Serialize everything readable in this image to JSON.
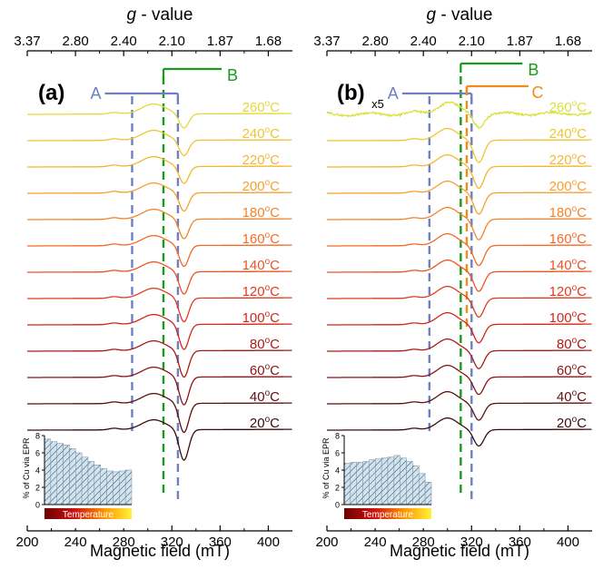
{
  "top_axis_title_g": "g",
  "top_axis_title_rest": " - value",
  "x_axis_label": "Magnetic field (mT)",
  "colors": {
    "A": "#6f7fc2",
    "B": "#1a9a1a",
    "C": "#f08c1a",
    "axis": "#000000",
    "bar_fill": "#cfe4ef",
    "bar_edge": "#2b2b4b"
  },
  "chart_data": [
    {
      "panel": "(a)",
      "type": "line",
      "xlim": [
        200,
        420
      ],
      "xticks": [
        "200",
        "240",
        "280",
        "320",
        "360",
        "400"
      ],
      "g_ticks": [
        "3.37",
        "2.80",
        "2.40",
        "2.10",
        "1.87",
        "1.68"
      ],
      "g_tick_fields": [
        200,
        240,
        280,
        320,
        360,
        400
      ],
      "markers": {
        "A": {
          "label": "A",
          "lines": [
            287,
            325
          ]
        },
        "B": {
          "label": "B",
          "lines": [
            313
          ]
        }
      },
      "series": [
        {
          "name": "20°C",
          "label_base": "20",
          "label_sup": "o",
          "label_unit": "C",
          "color": "#3a0d0d"
        },
        {
          "name": "40°C",
          "label_base": "40",
          "label_sup": "o",
          "label_unit": "C",
          "color": "#5c1010"
        },
        {
          "name": "60°C",
          "label_base": "60",
          "label_sup": "o",
          "label_unit": "C",
          "color": "#8a1414"
        },
        {
          "name": "80°C",
          "label_base": "80",
          "label_sup": "o",
          "label_unit": "C",
          "color": "#a81b16"
        },
        {
          "name": "100°C",
          "label_base": "100",
          "label_sup": "o",
          "label_unit": "C",
          "color": "#d3261a"
        },
        {
          "name": "120°C",
          "label_base": "120",
          "label_sup": "o",
          "label_unit": "C",
          "color": "#e33b1d"
        },
        {
          "name": "140°C",
          "label_base": "140",
          "label_sup": "o",
          "label_unit": "C",
          "color": "#ee5322"
        },
        {
          "name": "160°C",
          "label_base": "160",
          "label_sup": "o",
          "label_unit": "C",
          "color": "#f26a26"
        },
        {
          "name": "180°C",
          "label_base": "180",
          "label_sup": "o",
          "label_unit": "C",
          "color": "#f4842a"
        },
        {
          "name": "200°C",
          "label_base": "200",
          "label_sup": "o",
          "label_unit": "C",
          "color": "#f6a02e"
        },
        {
          "name": "220°C",
          "label_base": "220",
          "label_sup": "o",
          "label_unit": "C",
          "color": "#f3b72f"
        },
        {
          "name": "240°C",
          "label_base": "240",
          "label_sup": "o",
          "label_unit": "C",
          "color": "#eec532"
        },
        {
          "name": "260°C",
          "label_base": "260",
          "label_sup": "o",
          "label_unit": "C",
          "color": "#e4d83a"
        }
      ],
      "line_params": {
        "pos_center": 305,
        "pos_width": 14,
        "neg_center": 330,
        "neg_width": 5.5,
        "neg_amp_base": 34,
        "neg_amp_step": 1.5,
        "pos_amp": 11,
        "noise": 0
      },
      "inset": {
        "type": "bar",
        "ylabel": "% of Cu via EPR",
        "yticks": [
          "0",
          "2",
          "4",
          "6",
          "8"
        ],
        "ylim": [
          0,
          8
        ],
        "values": [
          7.6,
          7.3,
          7.1,
          6.9,
          6.5,
          6.0,
          5.5,
          5.0,
          4.6,
          4.2,
          3.9,
          3.8,
          3.9,
          4.0
        ],
        "bar_label": "Temperature"
      }
    },
    {
      "panel": "(b)",
      "type": "line",
      "xlim": [
        200,
        420
      ],
      "xticks": [
        "200",
        "240",
        "280",
        "320",
        "360",
        "400"
      ],
      "g_ticks": [
        "3.37",
        "2.80",
        "2.40",
        "2.10",
        "1.87",
        "1.68"
      ],
      "g_tick_fields": [
        200,
        240,
        280,
        320,
        360,
        400
      ],
      "scale_note": "x5",
      "markers": {
        "A": {
          "label": "A",
          "lines": [
            285,
            320
          ]
        },
        "B": {
          "label": "B",
          "lines": [
            311
          ]
        },
        "C": {
          "label": "C",
          "lines": [
            316
          ]
        }
      },
      "series": [
        {
          "name": "20°C",
          "label_base": "20",
          "label_sup": "o",
          "label_unit": "C",
          "color": "#3a0d0d"
        },
        {
          "name": "40°C",
          "label_base": "40",
          "label_sup": "o",
          "label_unit": "C",
          "color": "#5c1010"
        },
        {
          "name": "60°C",
          "label_base": "60",
          "label_sup": "o",
          "label_unit": "C",
          "color": "#8a1414"
        },
        {
          "name": "80°C",
          "label_base": "80",
          "label_sup": "o",
          "label_unit": "C",
          "color": "#a81b16"
        },
        {
          "name": "100°C",
          "label_base": "100",
          "label_sup": "o",
          "label_unit": "C",
          "color": "#d3261a"
        },
        {
          "name": "120°C",
          "label_base": "120",
          "label_sup": "o",
          "label_unit": "C",
          "color": "#e33b1d"
        },
        {
          "name": "140°C",
          "label_base": "140",
          "label_sup": "o",
          "label_unit": "C",
          "color": "#ee5322"
        },
        {
          "name": "160°C",
          "label_base": "160",
          "label_sup": "o",
          "label_unit": "C",
          "color": "#f26a26"
        },
        {
          "name": "180°C",
          "label_base": "180",
          "label_sup": "o",
          "label_unit": "C",
          "color": "#f4842a"
        },
        {
          "name": "200°C",
          "label_base": "200",
          "label_sup": "o",
          "label_unit": "C",
          "color": "#f6a02e"
        },
        {
          "name": "220°C",
          "label_base": "220",
          "label_sup": "o",
          "label_unit": "C",
          "color": "#f3b72f"
        },
        {
          "name": "240°C",
          "label_base": "240",
          "label_sup": "o",
          "label_unit": "C",
          "color": "#eec532"
        },
        {
          "name": "260°C",
          "label_base": "260",
          "label_sup": "o",
          "label_unit": "C",
          "color": "#d8e23a"
        }
      ],
      "line_params": {
        "pos_center": 300,
        "pos_width": 12,
        "neg_center": 326,
        "neg_width": 6,
        "neg_amp_base": 18,
        "neg_amp_step": -0.6,
        "pos_amp": 13,
        "noise": 1
      },
      "inset": {
        "type": "bar",
        "ylabel": "% of Cu via EPR",
        "yticks": [
          "0",
          "2",
          "4",
          "6",
          "8"
        ],
        "ylim": [
          0,
          8
        ],
        "values": [
          4.8,
          4.9,
          4.9,
          5.0,
          5.2,
          5.3,
          5.4,
          5.5,
          5.7,
          5.4,
          5.0,
          4.5,
          3.6,
          2.6
        ],
        "bar_label": "Temperature"
      }
    }
  ]
}
